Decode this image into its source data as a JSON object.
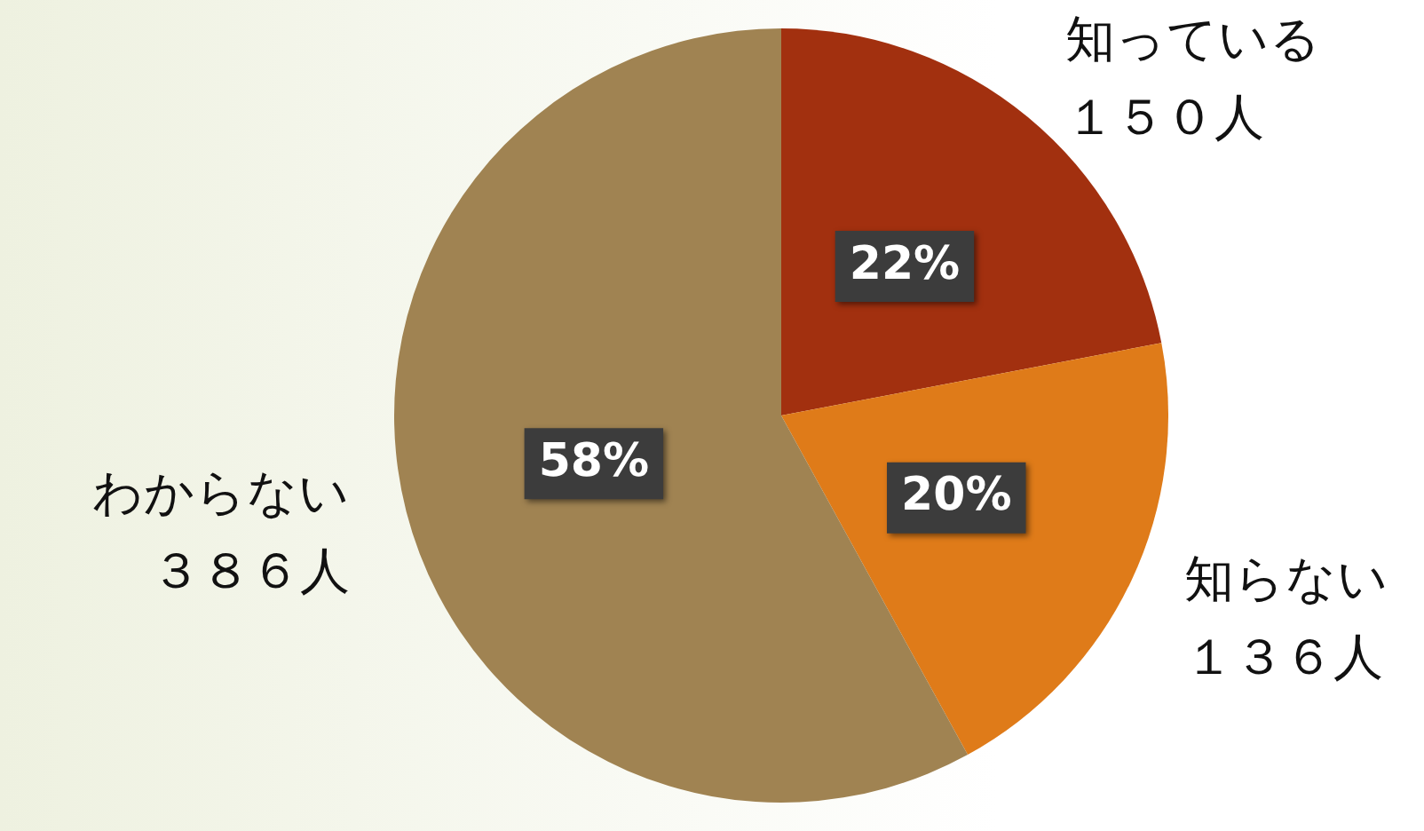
{
  "chart_data": {
    "type": "pie",
    "categories": [
      "知っている",
      "知らない",
      "わからない"
    ],
    "annotations": [
      {
        "text": "１５０人",
        "x": "知っている"
      },
      {
        "text": "１３６人",
        "x": "知らない"
      },
      {
        "text": "３８６人",
        "x": "わからない"
      }
    ],
    "values": [
      22,
      20,
      58
    ],
    "colors": [
      "#a2300f",
      "#df7b19",
      "#a08352"
    ],
    "value_labels": [
      "22%",
      "20%",
      "58%"
    ],
    "legend": false
  }
}
